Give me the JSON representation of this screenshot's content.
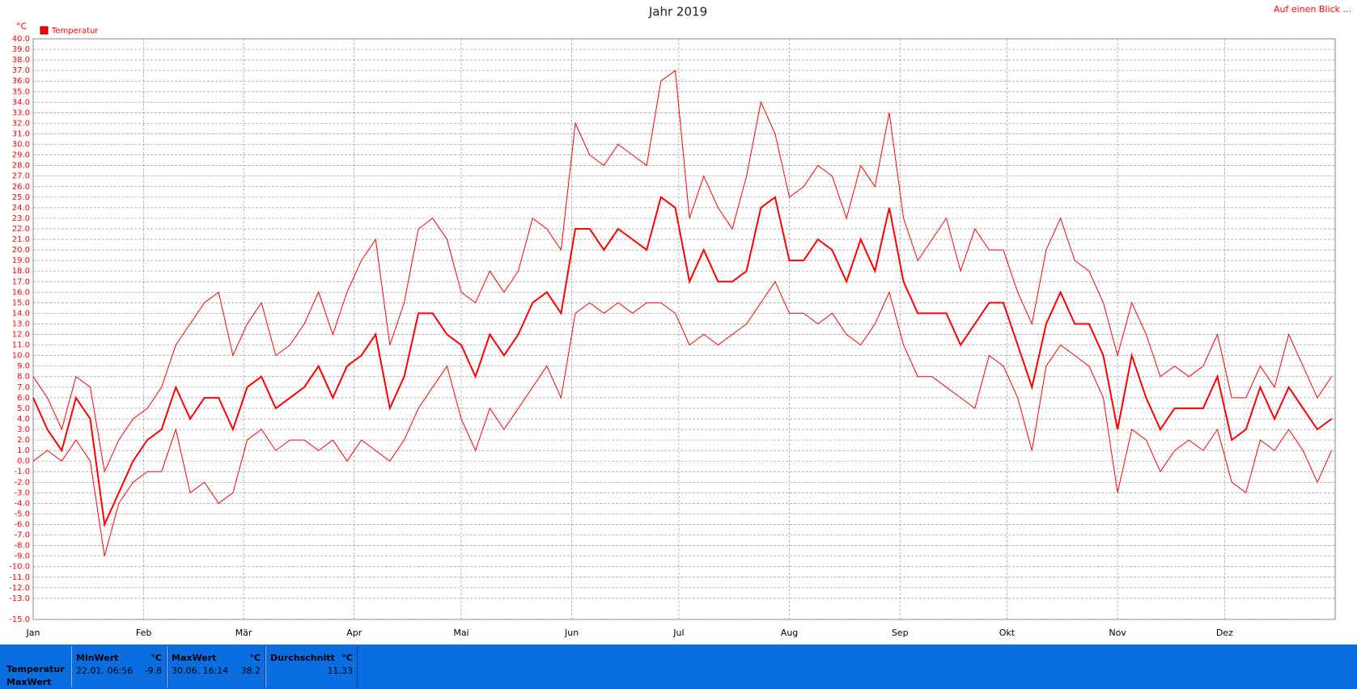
{
  "chart_data": {
    "type": "line",
    "title": "Jahr 2019",
    "y_unit": "°C",
    "x": [
      0,
      4,
      8,
      12,
      16,
      20,
      24,
      28,
      32,
      36,
      40,
      44,
      48,
      52,
      56,
      60,
      64,
      68,
      72,
      76,
      80,
      84,
      88,
      92,
      96,
      100,
      104,
      108,
      112,
      116,
      120,
      124,
      128,
      132,
      136,
      140,
      144,
      148,
      152,
      156,
      160,
      164,
      168,
      172,
      176,
      180,
      184,
      188,
      192,
      196,
      200,
      204,
      208,
      212,
      216,
      220,
      224,
      228,
      232,
      236,
      240,
      244,
      248,
      252,
      256,
      260,
      264,
      268,
      272,
      276,
      280,
      284,
      288,
      292,
      296,
      300,
      304,
      308,
      312,
      316,
      320,
      324,
      328,
      332,
      336,
      340,
      344,
      348,
      352,
      356,
      360,
      364
    ],
    "xlim": [
      0,
      365
    ],
    "xticks": [
      {
        "value": 0,
        "label": "Jan"
      },
      {
        "value": 31,
        "label": "Feb"
      },
      {
        "value": 59,
        "label": "Mär"
      },
      {
        "value": 90,
        "label": "Apr"
      },
      {
        "value": 120,
        "label": "Mai"
      },
      {
        "value": 151,
        "label": "Jun"
      },
      {
        "value": 181,
        "label": "Jul"
      },
      {
        "value": 212,
        "label": "Aug"
      },
      {
        "value": 243,
        "label": "Sep"
      },
      {
        "value": 273,
        "label": "Okt"
      },
      {
        "value": 304,
        "label": "Nov"
      },
      {
        "value": 334,
        "label": "Dez"
      }
    ],
    "ylim": [
      -15,
      40
    ],
    "yticks": [
      {
        "value": -15,
        "label": "-15.0"
      },
      {
        "value": -13,
        "label": "-13.0"
      },
      {
        "value": -12,
        "label": "-12.0"
      },
      {
        "value": -11,
        "label": "-11.0"
      },
      {
        "value": -10,
        "label": "-10.0"
      },
      {
        "value": -9,
        "label": "-9.0"
      },
      {
        "value": -8,
        "label": "-8.0"
      },
      {
        "value": -7,
        "label": "-7.0"
      },
      {
        "value": -6,
        "label": "-6.0"
      },
      {
        "value": -5,
        "label": "-5.0"
      },
      {
        "value": -4,
        "label": "-4.0"
      },
      {
        "value": -3,
        "label": "-3.0"
      },
      {
        "value": -2,
        "label": "-2.0"
      },
      {
        "value": -1,
        "label": "-1.0"
      },
      {
        "value": 0,
        "label": "0.0"
      },
      {
        "value": 1,
        "label": "1.0"
      },
      {
        "value": 2,
        "label": "2.0"
      },
      {
        "value": 3,
        "label": "3.0"
      },
      {
        "value": 4,
        "label": "4.0"
      },
      {
        "value": 5,
        "label": "5.0"
      },
      {
        "value": 6,
        "label": "6.0"
      },
      {
        "value": 7,
        "label": "7.0"
      },
      {
        "value": 8,
        "label": "8.0"
      },
      {
        "value": 9,
        "label": "9.0"
      },
      {
        "value": 10,
        "label": "10.0"
      },
      {
        "value": 11,
        "label": "11.0"
      },
      {
        "value": 12,
        "label": "12.0"
      },
      {
        "value": 13,
        "label": "13.0"
      },
      {
        "value": 14,
        "label": "14.0"
      },
      {
        "value": 15,
        "label": "15.0"
      },
      {
        "value": 16,
        "label": "16.0"
      },
      {
        "value": 17,
        "label": "17.0"
      },
      {
        "value": 18,
        "label": "18.0"
      },
      {
        "value": 19,
        "label": "19.0"
      },
      {
        "value": 20,
        "label": "20.0"
      },
      {
        "value": 21,
        "label": "21.0"
      },
      {
        "value": 22,
        "label": "22.0"
      },
      {
        "value": 23,
        "label": "23.0"
      },
      {
        "value": 24,
        "label": "24.0"
      },
      {
        "value": 25,
        "label": "25.0"
      },
      {
        "value": 26,
        "label": "26.0"
      },
      {
        "value": 27,
        "label": "27.0"
      },
      {
        "value": 28,
        "label": "28.0"
      },
      {
        "value": 29,
        "label": "29.0"
      },
      {
        "value": 30,
        "label": "30.0"
      },
      {
        "value": 31,
        "label": "31.0"
      },
      {
        "value": 32,
        "label": "32.0"
      },
      {
        "value": 33,
        "label": "33.0"
      },
      {
        "value": 34,
        "label": "34.0"
      },
      {
        "value": 35,
        "label": "35.0"
      },
      {
        "value": 36,
        "label": "36.0"
      },
      {
        "value": 37,
        "label": "37.0"
      },
      {
        "value": 38,
        "label": "38.0"
      },
      {
        "value": 39,
        "label": "39.0"
      },
      {
        "value": 40,
        "label": "40.0"
      }
    ],
    "grid": true,
    "series": [
      {
        "name": "Temperatur",
        "color": "#ff0000",
        "values": [
          6,
          3,
          1,
          6,
          4,
          -6,
          -3,
          0,
          2,
          3,
          7,
          4,
          6,
          6,
          3,
          7,
          8,
          5,
          6,
          7,
          9,
          6,
          9,
          10,
          12,
          5,
          8,
          14,
          14,
          12,
          11,
          8,
          12,
          10,
          12,
          15,
          16,
          14,
          22,
          22,
          20,
          22,
          21,
          20,
          25,
          24,
          17,
          20,
          17,
          17,
          18,
          24,
          25,
          19,
          19,
          21,
          20,
          17,
          21,
          18,
          24,
          17,
          14,
          14,
          14,
          11,
          13,
          15,
          15,
          11,
          7,
          13,
          16,
          13,
          13,
          10,
          3,
          10,
          6,
          3,
          5,
          5,
          5,
          8,
          2,
          3,
          7,
          4,
          7,
          5,
          3,
          4
        ]
      },
      {
        "color": "#ff0000",
        "values": [
          8,
          6,
          3,
          8,
          7,
          -1,
          2,
          4,
          5,
          7,
          11,
          13,
          15,
          16,
          10,
          13,
          15,
          10,
          11,
          13,
          16,
          12,
          16,
          19,
          21,
          11,
          15,
          22,
          23,
          21,
          16,
          15,
          18,
          16,
          18,
          23,
          22,
          20,
          32,
          29,
          28,
          30,
          29,
          28,
          36,
          37,
          23,
          27,
          24,
          22,
          27,
          34,
          31,
          25,
          26,
          28,
          27,
          23,
          28,
          26,
          33,
          23,
          19,
          21,
          23,
          18,
          22,
          20,
          20,
          16,
          13,
          20,
          23,
          19,
          18,
          15,
          10,
          15,
          12,
          8,
          9,
          8,
          9,
          12,
          6,
          6,
          9,
          7,
          12,
          9,
          6,
          8
        ]
      },
      {
        "color": "#ff0000",
        "values": [
          0,
          1,
          0,
          2,
          0,
          -9,
          -4,
          -2,
          -1,
          -1,
          3,
          -3,
          -2,
          -4,
          -3,
          2,
          3,
          1,
          2,
          2,
          1,
          2,
          0,
          2,
          1,
          0,
          2,
          5,
          7,
          9,
          4,
          1,
          5,
          3,
          5,
          7,
          9,
          6,
          14,
          15,
          14,
          15,
          14,
          15,
          15,
          14,
          11,
          12,
          11,
          12,
          13,
          15,
          17,
          14,
          14,
          13,
          14,
          12,
          11,
          13,
          16,
          11,
          8,
          8,
          7,
          6,
          5,
          10,
          9,
          6,
          1,
          9,
          11,
          10,
          9,
          6,
          -3,
          3,
          2,
          -1,
          1,
          2,
          1,
          3,
          -2,
          -3,
          2,
          1,
          3,
          1,
          -2,
          1
        ]
      }
    ],
    "legend": "top-left"
  },
  "header_link": "Auf einen Blick ...",
  "summary": {
    "row_labels": [
      "Temperatur",
      "MaxWert"
    ],
    "columns": [
      {
        "title": "MinWert",
        "unit": "°C",
        "time": "22.01.  06:56",
        "value": -9.8
      },
      {
        "title": "MaxWert",
        "unit": "°C",
        "time": "30.06.  16:14",
        "value": 38.2
      },
      {
        "title": "Durchschnitt",
        "unit": "°C",
        "value": 11.33
      }
    ]
  }
}
